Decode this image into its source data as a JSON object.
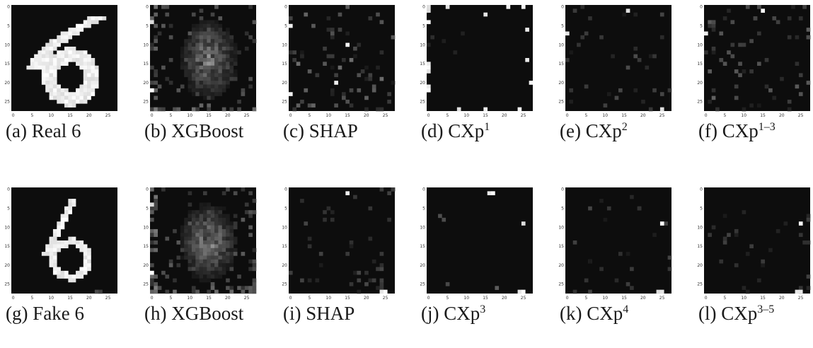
{
  "figure": {
    "rows": [
      {
        "panels": [
          {
            "kind": "digit-six-thick",
            "caption": {
              "letter": "(a)",
              "text": "Real 6",
              "sup": ""
            }
          },
          {
            "kind": "xgboost",
            "caption": {
              "letter": "(b)",
              "text": "XGBoost",
              "sup": ""
            }
          },
          {
            "kind": "shap",
            "caption": {
              "letter": "(c)",
              "text": "SHAP",
              "sup": ""
            }
          },
          {
            "kind": "cxp-sparse-edges",
            "caption": {
              "letter": "(d)",
              "text": "CXp",
              "sup": "1"
            }
          },
          {
            "kind": "cxp-faint",
            "caption": {
              "letter": "(e)",
              "text": "CXp",
              "sup": "2"
            }
          },
          {
            "kind": "cxp-medium",
            "caption": {
              "letter": "(f)",
              "text": "CXp",
              "sup": "1–3"
            }
          }
        ]
      },
      {
        "panels": [
          {
            "kind": "digit-six-thin",
            "caption": {
              "letter": "(g)",
              "text": "Fake 6",
              "sup": ""
            }
          },
          {
            "kind": "xgboost",
            "caption": {
              "letter": "(h)",
              "text": "XGBoost",
              "sup": ""
            }
          },
          {
            "kind": "shap-faint",
            "caption": {
              "letter": "(i)",
              "text": "SHAP",
              "sup": ""
            }
          },
          {
            "kind": "cxp-few",
            "caption": {
              "letter": "(j)",
              "text": "CXp",
              "sup": "3"
            }
          },
          {
            "kind": "cxp-few-faint",
            "caption": {
              "letter": "(k)",
              "text": "CXp",
              "sup": "4"
            }
          },
          {
            "kind": "cxp-few-faint2",
            "caption": {
              "letter": "(l)",
              "text": "CXp",
              "sup": "3–5"
            }
          }
        ]
      }
    ],
    "axis_ticks": {
      "y": [
        "0",
        "5",
        "10",
        "15",
        "20",
        "25"
      ],
      "x": [
        "0",
        "5",
        "10",
        "15",
        "20",
        "25"
      ]
    },
    "colors": {
      "background": "#0d0d0d",
      "max": "#ffffff"
    }
  }
}
